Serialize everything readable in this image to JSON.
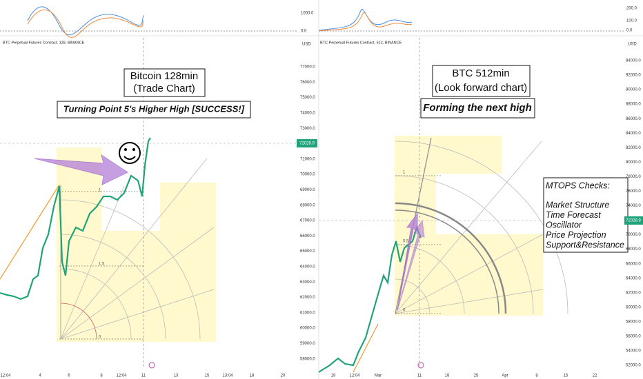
{
  "top_left": {
    "axis": [
      "1000.0",
      "0.0"
    ]
  },
  "top_right": {
    "axis": [
      "200.0",
      "100.0",
      "0.0"
    ]
  },
  "left": {
    "header": "BTC Perpetual Futures Contract, 128, BINANCE",
    "currency": "USD",
    "price_axis": [
      "77000.0",
      "76000.0",
      "75000.0",
      "74000.0",
      "73000.0",
      "71000.0",
      "70000.0",
      "69000.0",
      "68000.0",
      "67000.0",
      "66000.0",
      "65000.0",
      "64000.0",
      "63000.0",
      "62000.0",
      "61000.0",
      "60000.0",
      "59000.0",
      "58000.0"
    ],
    "price_tag": "72028.9",
    "time_axis": [
      "12:04",
      "4",
      "6",
      "8",
      "12:04",
      "11",
      "13",
      "15",
      "13:04",
      "18",
      "20"
    ],
    "title_lines": [
      "Bitcoin 128min",
      "(Trade Chart)"
    ],
    "subtitle": "Turning Point 5's Higher High [SUCCESS!]",
    "fib_labels": [
      "1",
      "1.5",
      "0"
    ]
  },
  "right": {
    "header": "BTC Perpetual Futures Contract, 512, BINANCE",
    "currency": "USD",
    "price_axis": [
      "94000.0",
      "92000.0",
      "90000.0",
      "88000.0",
      "86000.0",
      "84000.0",
      "82000.0",
      "80000.0",
      "78000.0",
      "76000.0",
      "74000.0",
      "70000.0",
      "68000.0",
      "66000.0",
      "64000.0",
      "62000.0",
      "60000.0",
      "58000.0",
      "56000.0",
      "54000.0",
      "52000.0"
    ],
    "price_tag": "72028.9",
    "time_axis": [
      "19",
      "12:04",
      "Mar",
      "11",
      "18",
      "25",
      "Apr",
      "8",
      "15",
      "22"
    ],
    "title_lines": [
      "BTC 512min",
      "(Look forward chart)"
    ],
    "subtitle": "Forming the next high",
    "fib_labels": [
      "1",
      "0.5",
      "0"
    ],
    "checks": {
      "title": "MTOPS Checks:",
      "items": [
        "Market Structure",
        "Time Forecast",
        "Oscillator",
        "Price Projection",
        "Support&Resistance"
      ]
    }
  }
}
